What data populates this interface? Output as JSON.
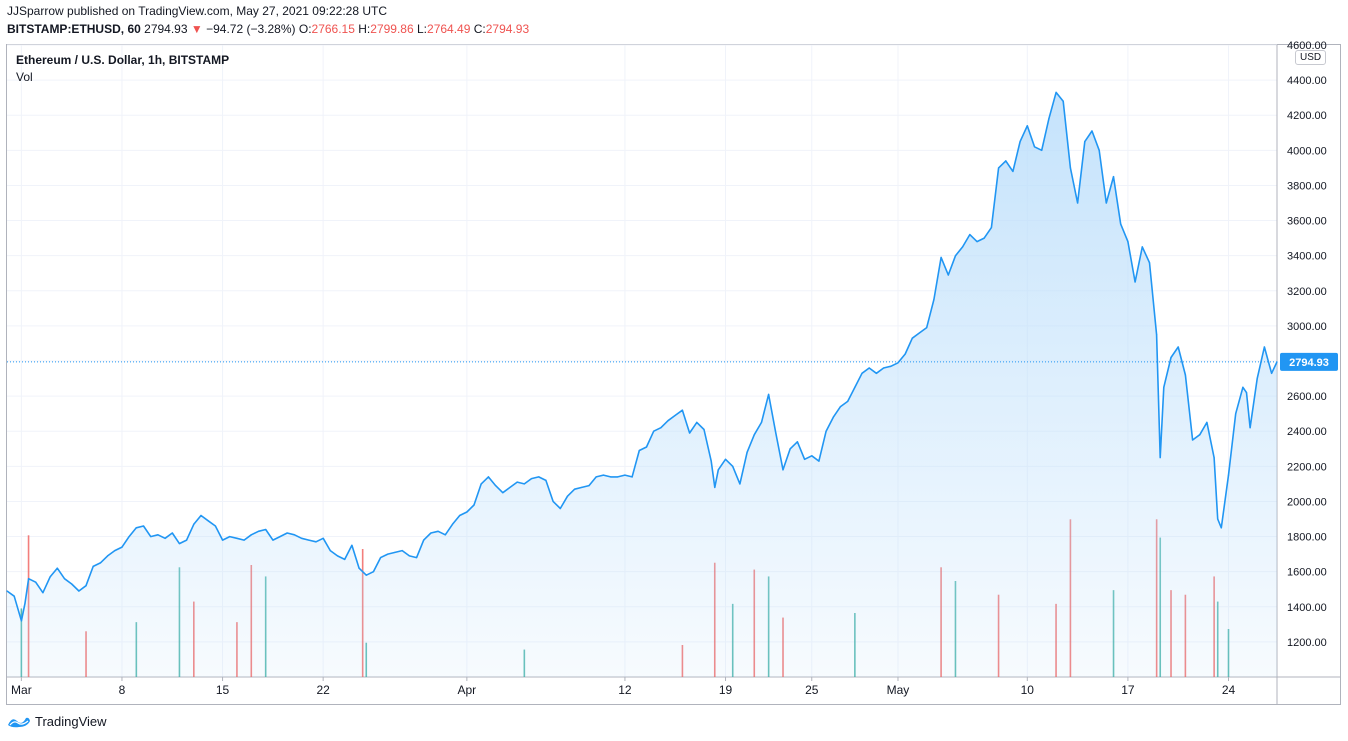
{
  "header": {
    "publisher": "JJSparrow published on TradingView.com, May 27, 2021 09:22:28 UTC",
    "symbol": "BITSTAMP:ETHUSD, 60",
    "last": "2794.93",
    "change_arrow": "▼",
    "change": "−94.72 (−3.28%)",
    "o_label": "O:",
    "o_value": "2766.15",
    "h_label": "H:",
    "h_value": "2799.86",
    "l_label": "L:",
    "l_value": "2764.49",
    "c_label": "C:",
    "c_value": "2794.93"
  },
  "legend": {
    "title": "Ethereum / U.S. Dollar, 1h, BITSTAMP",
    "vol": "Vol"
  },
  "axis_currency": "USD",
  "footer": {
    "brand": "TradingView",
    "logo_icon": "tradingview-logo-icon"
  },
  "colors": {
    "line": "#2196f3",
    "area_top": "#bbdefb",
    "vol_up": "#26a69a",
    "vol_down": "#ef5350",
    "price_tag": "#2196f3",
    "down": "#ef5350"
  },
  "chart_data": {
    "type": "area",
    "title": "Ethereum / U.S. Dollar, 1h, BITSTAMP",
    "ylim": [
      1000,
      4600
    ],
    "yticks": [
      "1200.00",
      "1400.00",
      "1600.00",
      "1800.00",
      "2000.00",
      "2200.00",
      "2400.00",
      "2600.00",
      "2800.00",
      "3000.00",
      "3200.00",
      "3400.00",
      "3600.00",
      "3800.00",
      "4000.00",
      "4200.00",
      "4400.00",
      "4600.00"
    ],
    "xlim": [
      "2021-02-28",
      "2021-05-27T09:00"
    ],
    "xticks": [
      {
        "date": "2021-03-01",
        "label": "Mar"
      },
      {
        "date": "2021-03-08",
        "label": "8"
      },
      {
        "date": "2021-03-15",
        "label": "15"
      },
      {
        "date": "2021-03-22",
        "label": "22"
      },
      {
        "date": "2021-04-01",
        "label": "Apr"
      },
      {
        "date": "2021-04-12",
        "label": "12"
      },
      {
        "date": "2021-04-19",
        "label": "19"
      },
      {
        "date": "2021-04-25",
        "label": "25"
      },
      {
        "date": "2021-05-01",
        "label": "May"
      },
      {
        "date": "2021-05-10",
        "label": "10"
      },
      {
        "date": "2021-05-17",
        "label": "17"
      },
      {
        "date": "2021-05-24",
        "label": "24"
      }
    ],
    "last_price": 2794.93,
    "last_price_label": "2794.93",
    "grid": true,
    "series": [
      {
        "values": [
          [
            "2021-02-28T00:00",
            1490
          ],
          [
            "2021-02-28T12:00",
            1460
          ],
          [
            "2021-03-01T00:00",
            1320
          ],
          [
            "2021-03-01T06:00",
            1420
          ],
          [
            "2021-03-01T12:00",
            1560
          ],
          [
            "2021-03-02T00:00",
            1540
          ],
          [
            "2021-03-02T12:00",
            1480
          ],
          [
            "2021-03-03T00:00",
            1570
          ],
          [
            "2021-03-03T12:00",
            1620
          ],
          [
            "2021-03-04T00:00",
            1560
          ],
          [
            "2021-03-04T12:00",
            1530
          ],
          [
            "2021-03-05T00:00",
            1490
          ],
          [
            "2021-03-05T12:00",
            1520
          ],
          [
            "2021-03-06T00:00",
            1630
          ],
          [
            "2021-03-06T12:00",
            1650
          ],
          [
            "2021-03-07T00:00",
            1690
          ],
          [
            "2021-03-07T12:00",
            1720
          ],
          [
            "2021-03-08T00:00",
            1740
          ],
          [
            "2021-03-08T12:00",
            1800
          ],
          [
            "2021-03-09T00:00",
            1850
          ],
          [
            "2021-03-09T12:00",
            1860
          ],
          [
            "2021-03-10T00:00",
            1800
          ],
          [
            "2021-03-10T12:00",
            1810
          ],
          [
            "2021-03-11T00:00",
            1790
          ],
          [
            "2021-03-11T12:00",
            1820
          ],
          [
            "2021-03-12T00:00",
            1760
          ],
          [
            "2021-03-12T12:00",
            1780
          ],
          [
            "2021-03-13T00:00",
            1870
          ],
          [
            "2021-03-13T12:00",
            1920
          ],
          [
            "2021-03-14T00:00",
            1890
          ],
          [
            "2021-03-14T12:00",
            1860
          ],
          [
            "2021-03-15T00:00",
            1780
          ],
          [
            "2021-03-15T12:00",
            1800
          ],
          [
            "2021-03-16T00:00",
            1790
          ],
          [
            "2021-03-16T12:00",
            1780
          ],
          [
            "2021-03-17T00:00",
            1810
          ],
          [
            "2021-03-17T12:00",
            1830
          ],
          [
            "2021-03-18T00:00",
            1840
          ],
          [
            "2021-03-18T12:00",
            1780
          ],
          [
            "2021-03-19T00:00",
            1800
          ],
          [
            "2021-03-19T12:00",
            1820
          ],
          [
            "2021-03-20T00:00",
            1810
          ],
          [
            "2021-03-20T12:00",
            1790
          ],
          [
            "2021-03-21T00:00",
            1780
          ],
          [
            "2021-03-21T12:00",
            1770
          ],
          [
            "2021-03-22T00:00",
            1790
          ],
          [
            "2021-03-22T12:00",
            1720
          ],
          [
            "2021-03-23T00:00",
            1690
          ],
          [
            "2021-03-23T12:00",
            1670
          ],
          [
            "2021-03-24T00:00",
            1750
          ],
          [
            "2021-03-24T12:00",
            1620
          ],
          [
            "2021-03-25T00:00",
            1580
          ],
          [
            "2021-03-25T12:00",
            1600
          ],
          [
            "2021-03-26T00:00",
            1680
          ],
          [
            "2021-03-26T12:00",
            1700
          ],
          [
            "2021-03-27T00:00",
            1710
          ],
          [
            "2021-03-27T12:00",
            1720
          ],
          [
            "2021-03-28T00:00",
            1690
          ],
          [
            "2021-03-28T12:00",
            1680
          ],
          [
            "2021-03-29T00:00",
            1780
          ],
          [
            "2021-03-29T12:00",
            1820
          ],
          [
            "2021-03-30T00:00",
            1830
          ],
          [
            "2021-03-30T12:00",
            1810
          ],
          [
            "2021-03-31T00:00",
            1870
          ],
          [
            "2021-03-31T12:00",
            1920
          ],
          [
            "2021-04-01T00:00",
            1940
          ],
          [
            "2021-04-01T12:00",
            1980
          ],
          [
            "2021-04-02T00:00",
            2100
          ],
          [
            "2021-04-02T12:00",
            2140
          ],
          [
            "2021-04-03T00:00",
            2090
          ],
          [
            "2021-04-03T12:00",
            2050
          ],
          [
            "2021-04-04T00:00",
            2080
          ],
          [
            "2021-04-04T12:00",
            2110
          ],
          [
            "2021-04-05T00:00",
            2100
          ],
          [
            "2021-04-05T12:00",
            2130
          ],
          [
            "2021-04-06T00:00",
            2140
          ],
          [
            "2021-04-06T12:00",
            2120
          ],
          [
            "2021-04-07T00:00",
            2000
          ],
          [
            "2021-04-07T12:00",
            1960
          ],
          [
            "2021-04-08T00:00",
            2030
          ],
          [
            "2021-04-08T12:00",
            2070
          ],
          [
            "2021-04-09T00:00",
            2080
          ],
          [
            "2021-04-09T12:00",
            2090
          ],
          [
            "2021-04-10T00:00",
            2140
          ],
          [
            "2021-04-10T12:00",
            2150
          ],
          [
            "2021-04-11T00:00",
            2140
          ],
          [
            "2021-04-11T12:00",
            2140
          ],
          [
            "2021-04-12T00:00",
            2150
          ],
          [
            "2021-04-12T12:00",
            2140
          ],
          [
            "2021-04-13T00:00",
            2290
          ],
          [
            "2021-04-13T12:00",
            2310
          ],
          [
            "2021-04-14T00:00",
            2400
          ],
          [
            "2021-04-14T12:00",
            2420
          ],
          [
            "2021-04-15T00:00",
            2460
          ],
          [
            "2021-04-15T12:00",
            2490
          ],
          [
            "2021-04-16T00:00",
            2520
          ],
          [
            "2021-04-16T12:00",
            2390
          ],
          [
            "2021-04-17T00:00",
            2450
          ],
          [
            "2021-04-17T12:00",
            2410
          ],
          [
            "2021-04-18T00:00",
            2230
          ],
          [
            "2021-04-18T06:00",
            2080
          ],
          [
            "2021-04-18T12:00",
            2180
          ],
          [
            "2021-04-19T00:00",
            2240
          ],
          [
            "2021-04-19T12:00",
            2200
          ],
          [
            "2021-04-20T00:00",
            2100
          ],
          [
            "2021-04-20T12:00",
            2280
          ],
          [
            "2021-04-21T00:00",
            2380
          ],
          [
            "2021-04-21T12:00",
            2450
          ],
          [
            "2021-04-22T00:00",
            2610
          ],
          [
            "2021-04-22T12:00",
            2390
          ],
          [
            "2021-04-23T00:00",
            2180
          ],
          [
            "2021-04-23T12:00",
            2300
          ],
          [
            "2021-04-24T00:00",
            2340
          ],
          [
            "2021-04-24T12:00",
            2240
          ],
          [
            "2021-04-25T00:00",
            2260
          ],
          [
            "2021-04-25T12:00",
            2230
          ],
          [
            "2021-04-26T00:00",
            2400
          ],
          [
            "2021-04-26T12:00",
            2480
          ],
          [
            "2021-04-27T00:00",
            2540
          ],
          [
            "2021-04-27T12:00",
            2570
          ],
          [
            "2021-04-28T00:00",
            2650
          ],
          [
            "2021-04-28T12:00",
            2730
          ],
          [
            "2021-04-29T00:00",
            2760
          ],
          [
            "2021-04-29T12:00",
            2730
          ],
          [
            "2021-04-30T00:00",
            2760
          ],
          [
            "2021-04-30T12:00",
            2770
          ],
          [
            "2021-05-01T00:00",
            2790
          ],
          [
            "2021-05-01T12:00",
            2840
          ],
          [
            "2021-05-02T00:00",
            2930
          ],
          [
            "2021-05-02T12:00",
            2960
          ],
          [
            "2021-05-03T00:00",
            2990
          ],
          [
            "2021-05-03T12:00",
            3150
          ],
          [
            "2021-05-04T00:00",
            3390
          ],
          [
            "2021-05-04T12:00",
            3290
          ],
          [
            "2021-05-05T00:00",
            3400
          ],
          [
            "2021-05-05T12:00",
            3450
          ],
          [
            "2021-05-06T00:00",
            3520
          ],
          [
            "2021-05-06T12:00",
            3480
          ],
          [
            "2021-05-07T00:00",
            3500
          ],
          [
            "2021-05-07T12:00",
            3560
          ],
          [
            "2021-05-08T00:00",
            3900
          ],
          [
            "2021-05-08T12:00",
            3940
          ],
          [
            "2021-05-09T00:00",
            3880
          ],
          [
            "2021-05-09T12:00",
            4050
          ],
          [
            "2021-05-10T00:00",
            4140
          ],
          [
            "2021-05-10T12:00",
            4020
          ],
          [
            "2021-05-11T00:00",
            4000
          ],
          [
            "2021-05-11T12:00",
            4180
          ],
          [
            "2021-05-12T00:00",
            4330
          ],
          [
            "2021-05-12T12:00",
            4280
          ],
          [
            "2021-05-13T00:00",
            3900
          ],
          [
            "2021-05-13T12:00",
            3700
          ],
          [
            "2021-05-14T00:00",
            4050
          ],
          [
            "2021-05-14T12:00",
            4110
          ],
          [
            "2021-05-15T00:00",
            4000
          ],
          [
            "2021-05-15T12:00",
            3700
          ],
          [
            "2021-05-16T00:00",
            3850
          ],
          [
            "2021-05-16T12:00",
            3580
          ],
          [
            "2021-05-17T00:00",
            3480
          ],
          [
            "2021-05-17T12:00",
            3250
          ],
          [
            "2021-05-18T00:00",
            3450
          ],
          [
            "2021-05-18T12:00",
            3360
          ],
          [
            "2021-05-19T00:00",
            2950
          ],
          [
            "2021-05-19T06:00",
            2250
          ],
          [
            "2021-05-19T12:00",
            2650
          ],
          [
            "2021-05-20T00:00",
            2820
          ],
          [
            "2021-05-20T12:00",
            2880
          ],
          [
            "2021-05-21T00:00",
            2720
          ],
          [
            "2021-05-21T12:00",
            2350
          ],
          [
            "2021-05-22T00:00",
            2380
          ],
          [
            "2021-05-22T12:00",
            2450
          ],
          [
            "2021-05-23T00:00",
            2250
          ],
          [
            "2021-05-23T06:00",
            1900
          ],
          [
            "2021-05-23T12:00",
            1850
          ],
          [
            "2021-05-24T00:00",
            2150
          ],
          [
            "2021-05-24T12:00",
            2500
          ],
          [
            "2021-05-25T00:00",
            2650
          ],
          [
            "2021-05-25T06:00",
            2620
          ],
          [
            "2021-05-25T12:00",
            2420
          ],
          [
            "2021-05-26T00:00",
            2700
          ],
          [
            "2021-05-26T12:00",
            2880
          ],
          [
            "2021-05-27T00:00",
            2730
          ],
          [
            "2021-05-27T09:00",
            2794.93
          ]
        ]
      }
    ],
    "volume": {
      "values": [
        [
          "2021-03-01",
          300,
          "up"
        ],
        [
          "2021-03-01T12:00",
          620,
          "down"
        ],
        [
          "2021-03-05T12:00",
          200,
          "down"
        ],
        [
          "2021-03-09",
          240,
          "up"
        ],
        [
          "2021-03-12",
          480,
          "up"
        ],
        [
          "2021-03-13",
          330,
          "down"
        ],
        [
          "2021-03-16",
          240,
          "down"
        ],
        [
          "2021-03-17",
          490,
          "down"
        ],
        [
          "2021-03-18",
          440,
          "up"
        ],
        [
          "2021-03-24T18:00",
          560,
          "down"
        ],
        [
          "2021-03-25",
          150,
          "up"
        ],
        [
          "2021-04-05",
          120,
          "up"
        ],
        [
          "2021-04-16",
          140,
          "down"
        ],
        [
          "2021-04-18T06:00",
          500,
          "down"
        ],
        [
          "2021-04-19T12:00",
          320,
          "up"
        ],
        [
          "2021-04-21",
          470,
          "down"
        ],
        [
          "2021-04-22",
          440,
          "up"
        ],
        [
          "2021-04-23",
          260,
          "down"
        ],
        [
          "2021-04-28",
          280,
          "up"
        ],
        [
          "2021-05-04",
          480,
          "down"
        ],
        [
          "2021-05-05",
          420,
          "up"
        ],
        [
          "2021-05-08",
          360,
          "down"
        ],
        [
          "2021-05-12",
          320,
          "down"
        ],
        [
          "2021-05-13",
          690,
          "down"
        ],
        [
          "2021-05-16",
          380,
          "up"
        ],
        [
          "2021-05-19",
          690,
          "down"
        ],
        [
          "2021-05-19T06:00",
          610,
          "up"
        ],
        [
          "2021-05-20",
          380,
          "down"
        ],
        [
          "2021-05-21",
          360,
          "down"
        ],
        [
          "2021-05-23",
          440,
          "down"
        ],
        [
          "2021-05-23T06:00",
          330,
          "up"
        ],
        [
          "2021-05-24",
          210,
          "up"
        ]
      ]
    }
  }
}
